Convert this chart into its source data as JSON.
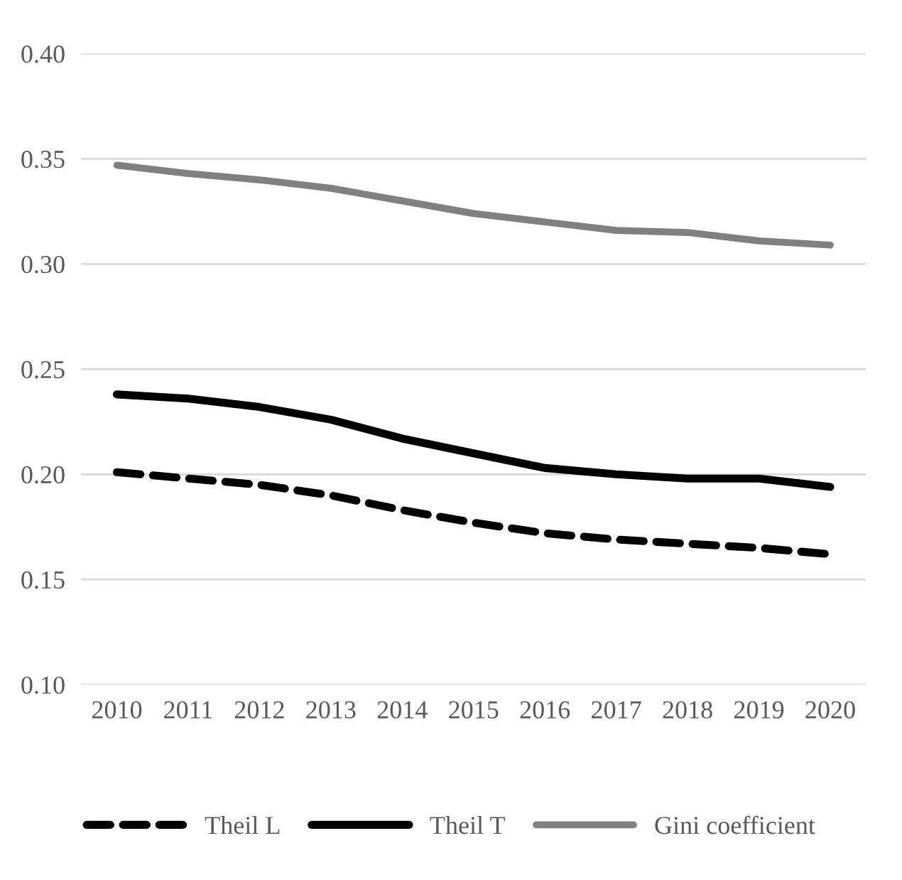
{
  "chart_data": {
    "type": "line",
    "categories": [
      "2010",
      "2011",
      "2012",
      "2013",
      "2014",
      "2015",
      "2016",
      "2017",
      "2018",
      "2019",
      "2020"
    ],
    "series": [
      {
        "name": "Theil L",
        "color": "#000000",
        "line_style": "dashed",
        "values": [
          0.201,
          0.198,
          0.195,
          0.19,
          0.183,
          0.177,
          0.172,
          0.169,
          0.167,
          0.165,
          0.162
        ]
      },
      {
        "name": "Theil T",
        "color": "#000000",
        "line_style": "solid",
        "values": [
          0.238,
          0.236,
          0.232,
          0.226,
          0.217,
          0.21,
          0.203,
          0.2,
          0.198,
          0.198,
          0.194
        ]
      },
      {
        "name": "Gini coefficient",
        "color": "#808080",
        "line_style": "solid",
        "values": [
          0.347,
          0.343,
          0.34,
          0.336,
          0.33,
          0.324,
          0.32,
          0.316,
          0.315,
          0.311,
          0.309
        ]
      }
    ],
    "ylim": [
      0.1,
      0.4
    ],
    "yticks": [
      {
        "value": 0.1,
        "label": "0.10"
      },
      {
        "value": 0.15,
        "label": "0.15"
      },
      {
        "value": 0.2,
        "label": "0.20"
      },
      {
        "value": 0.25,
        "label": "0.25"
      },
      {
        "value": 0.3,
        "label": "0.30"
      },
      {
        "value": 0.35,
        "label": "0.35"
      },
      {
        "value": 0.4,
        "label": "0.40"
      }
    ],
    "grid": "y",
    "legend": "bottom",
    "marker": "none"
  }
}
